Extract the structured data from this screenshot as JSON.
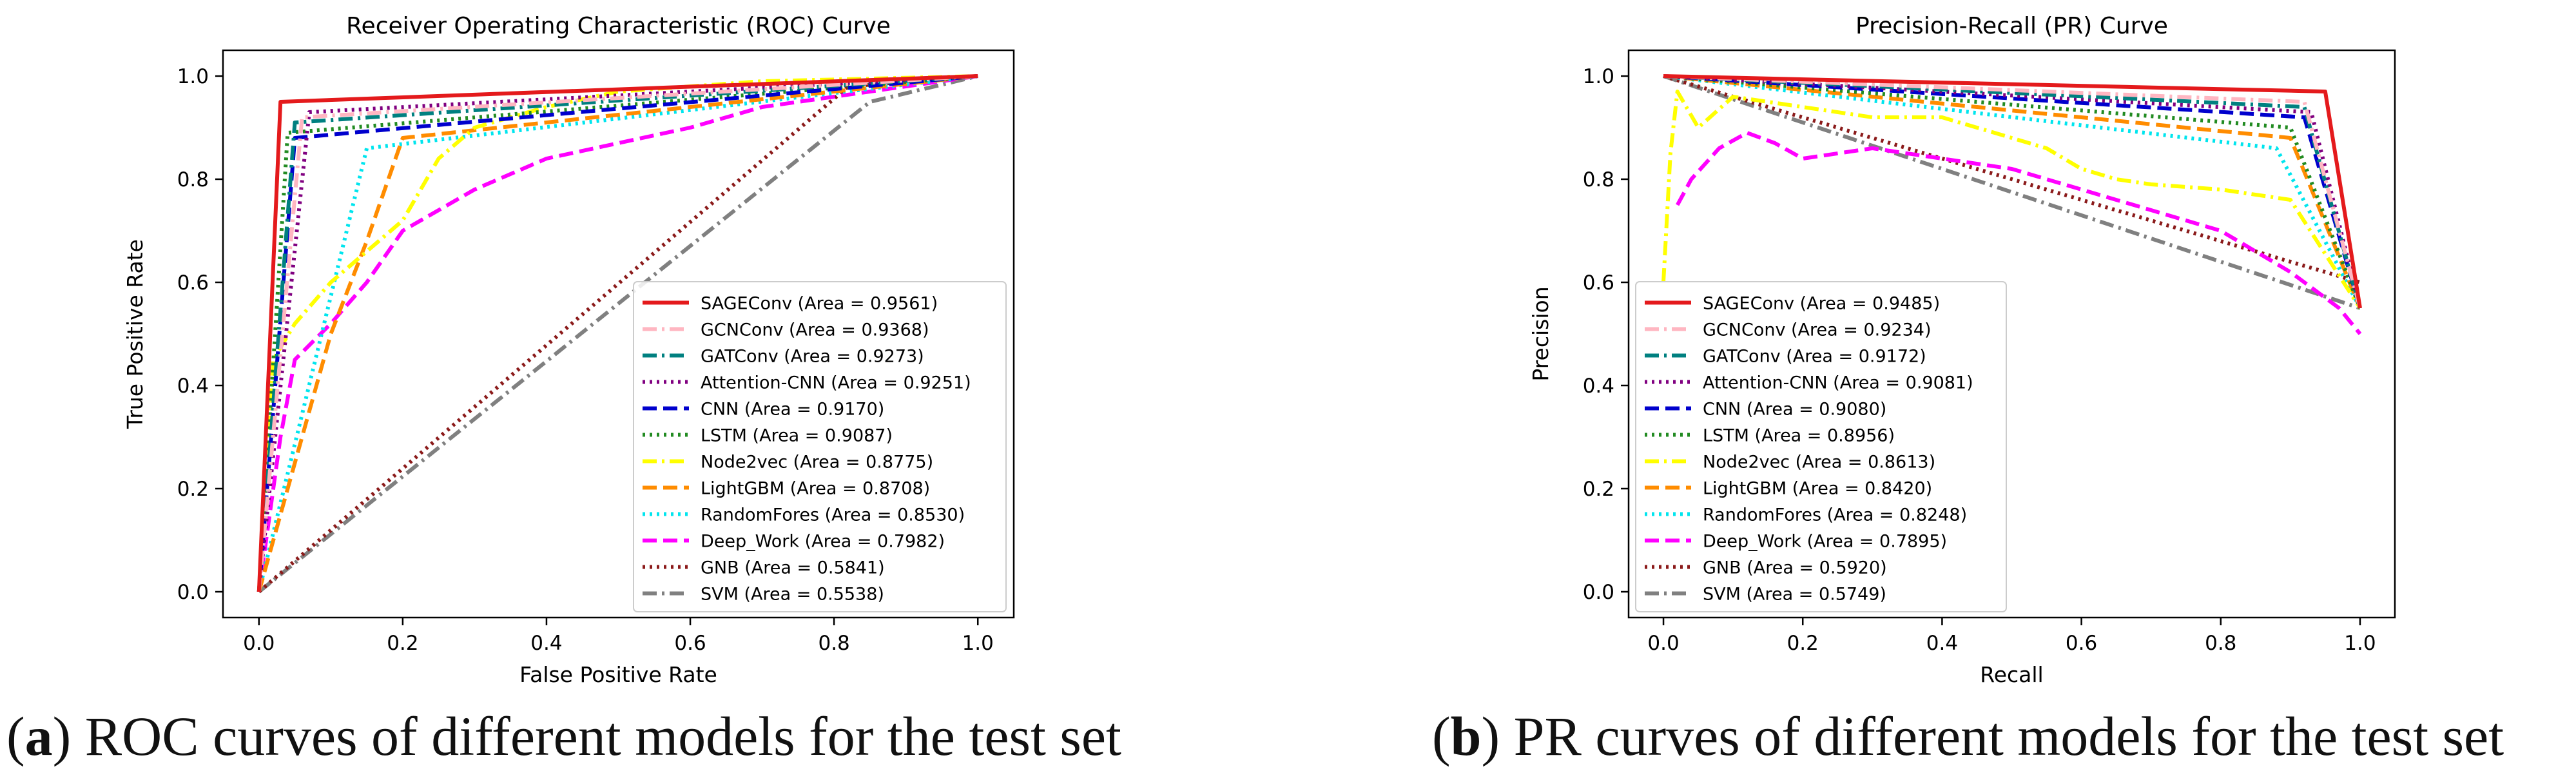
{
  "chart_data": [
    {
      "type": "line",
      "title": "Receiver Operating Characteristic (ROC) Curve",
      "xlabel": "False Positive Rate",
      "ylabel": "True Positive Rate",
      "xlim": [
        -0.05,
        1.05
      ],
      "ylim": [
        -0.05,
        1.05
      ],
      "xticks": [
        "0.0",
        "0.2",
        "0.4",
        "0.6",
        "0.8",
        "1.0"
      ],
      "yticks": [
        "0.0",
        "0.2",
        "0.4",
        "0.6",
        "0.8",
        "1.0"
      ],
      "legend_position": "lower-right",
      "series": [
        {
          "name": "SAGEConv",
          "area": "0.9561",
          "color": "#e41a1c",
          "dash": "solid",
          "points": [
            [
              0,
              0
            ],
            [
              0.03,
              0.95
            ],
            [
              1,
              1
            ]
          ]
        },
        {
          "name": "GCNConv",
          "area": "0.9368",
          "color": "#ffb6c1",
          "dash": "dashdot",
          "points": [
            [
              0,
              0
            ],
            [
              0.06,
              0.92
            ],
            [
              1,
              1
            ]
          ]
        },
        {
          "name": "GATConv",
          "area": "0.9273",
          "color": "#008080",
          "dash": "dashdot",
          "points": [
            [
              0,
              0
            ],
            [
              0.05,
              0.91
            ],
            [
              1,
              1
            ]
          ]
        },
        {
          "name": "Attention-CNN",
          "area": "0.9251",
          "color": "#800080",
          "dash": "dotted",
          "points": [
            [
              0,
              0
            ],
            [
              0.07,
              0.93
            ],
            [
              1,
              1
            ]
          ]
        },
        {
          "name": "CNN",
          "area": "0.9170",
          "color": "#0000cd",
          "dash": "dashed",
          "points": [
            [
              0,
              0
            ],
            [
              0.05,
              0.88
            ],
            [
              1,
              1
            ]
          ]
        },
        {
          "name": "LSTM",
          "area": "0.9087",
          "color": "#228b22",
          "dash": "dotted",
          "points": [
            [
              0,
              0
            ],
            [
              0.04,
              0.89
            ],
            [
              1,
              1
            ]
          ]
        },
        {
          "name": "Node2vec",
          "area": "0.8775",
          "color": "#ffff00",
          "dash": "dashdot",
          "points": [
            [
              0,
              0
            ],
            [
              0.02,
              0.45
            ],
            [
              0.05,
              0.52
            ],
            [
              0.1,
              0.6
            ],
            [
              0.15,
              0.66
            ],
            [
              0.2,
              0.72
            ],
            [
              0.25,
              0.84
            ],
            [
              0.3,
              0.9
            ],
            [
              0.4,
              0.94
            ],
            [
              0.5,
              0.97
            ],
            [
              0.7,
              0.99
            ],
            [
              1,
              1
            ]
          ]
        },
        {
          "name": "LightGBM",
          "area": "0.8708",
          "color": "#ff8c00",
          "dash": "dashed",
          "points": [
            [
              0,
              0
            ],
            [
              0.1,
              0.5
            ],
            [
              0.15,
              0.68
            ],
            [
              0.2,
              0.88
            ],
            [
              1,
              1
            ]
          ]
        },
        {
          "name": "RandomFores",
          "area": "0.8530",
          "color": "#00e5ee",
          "dash": "dotted",
          "points": [
            [
              0,
              0
            ],
            [
              0.15,
              0.86
            ],
            [
              1,
              1
            ]
          ]
        },
        {
          "name": "Deep_Work",
          "area": "0.7982",
          "color": "#ff00ff",
          "dash": "dashed",
          "points": [
            [
              0,
              0
            ],
            [
              0.03,
              0.3
            ],
            [
              0.05,
              0.45
            ],
            [
              0.1,
              0.52
            ],
            [
              0.15,
              0.6
            ],
            [
              0.2,
              0.7
            ],
            [
              0.25,
              0.74
            ],
            [
              0.3,
              0.78
            ],
            [
              0.4,
              0.84
            ],
            [
              0.5,
              0.87
            ],
            [
              0.6,
              0.9
            ],
            [
              0.7,
              0.94
            ],
            [
              0.8,
              0.96
            ],
            [
              0.9,
              0.98
            ],
            [
              1,
              1
            ]
          ]
        },
        {
          "name": "GNB",
          "area": "0.5841",
          "color": "#8b1a1a",
          "dash": "dotted",
          "points": [
            [
              0,
              0
            ],
            [
              0.82,
              0.98
            ],
            [
              1,
              1
            ]
          ]
        },
        {
          "name": "SVM",
          "area": "0.5538",
          "color": "#808080",
          "dash": "dashdot",
          "points": [
            [
              0,
              0
            ],
            [
              0.85,
              0.95
            ],
            [
              1,
              1
            ]
          ]
        }
      ]
    },
    {
      "type": "line",
      "title": "Precision-Recall (PR) Curve",
      "xlabel": "Recall",
      "ylabel": "Precision",
      "xlim": [
        -0.05,
        1.05
      ],
      "ylim": [
        -0.05,
        1.05
      ],
      "xticks": [
        "0.0",
        "0.2",
        "0.4",
        "0.6",
        "0.8",
        "1.0"
      ],
      "yticks": [
        "0.0",
        "0.2",
        "0.4",
        "0.6",
        "0.8",
        "1.0"
      ],
      "legend_position": "lower-left",
      "series": [
        {
          "name": "SAGEConv",
          "area": "0.9485",
          "color": "#e41a1c",
          "dash": "solid",
          "points": [
            [
              0,
              1
            ],
            [
              0.95,
              0.97
            ],
            [
              1,
              0.55
            ]
          ]
        },
        {
          "name": "GCNConv",
          "area": "0.9234",
          "color": "#ffb6c1",
          "dash": "dashdot",
          "points": [
            [
              0,
              1
            ],
            [
              0.92,
              0.95
            ],
            [
              1,
              0.55
            ]
          ]
        },
        {
          "name": "GATConv",
          "area": "0.9172",
          "color": "#008080",
          "dash": "dashdot",
          "points": [
            [
              0,
              1
            ],
            [
              0.92,
              0.94
            ],
            [
              1,
              0.55
            ]
          ]
        },
        {
          "name": "Attention-CNN",
          "area": "0.9081",
          "color": "#800080",
          "dash": "dotted",
          "points": [
            [
              0,
              1
            ],
            [
              0.93,
              0.93
            ],
            [
              1,
              0.55
            ]
          ]
        },
        {
          "name": "CNN",
          "area": "0.9080",
          "color": "#0000cd",
          "dash": "dashed",
          "points": [
            [
              0,
              1
            ],
            [
              0.92,
              0.92
            ],
            [
              1,
              0.55
            ]
          ]
        },
        {
          "name": "LSTM",
          "area": "0.8956",
          "color": "#228b22",
          "dash": "dotted",
          "points": [
            [
              0,
              1
            ],
            [
              0.9,
              0.9
            ],
            [
              1,
              0.55
            ]
          ]
        },
        {
          "name": "Node2vec",
          "area": "0.8613",
          "color": "#ffff00",
          "dash": "dashdot",
          "points": [
            [
              0,
              0.6
            ],
            [
              0.01,
              0.85
            ],
            [
              0.02,
              0.97
            ],
            [
              0.05,
              0.9
            ],
            [
              0.1,
              0.96
            ],
            [
              0.2,
              0.94
            ],
            [
              0.3,
              0.92
            ],
            [
              0.4,
              0.92
            ],
            [
              0.45,
              0.9
            ],
            [
              0.5,
              0.88
            ],
            [
              0.55,
              0.86
            ],
            [
              0.6,
              0.82
            ],
            [
              0.65,
              0.8
            ],
            [
              0.7,
              0.79
            ],
            [
              0.8,
              0.78
            ],
            [
              0.9,
              0.76
            ],
            [
              1,
              0.55
            ]
          ]
        },
        {
          "name": "LightGBM",
          "area": "0.8420",
          "color": "#ff8c00",
          "dash": "dashed",
          "points": [
            [
              0,
              1
            ],
            [
              0.9,
              0.88
            ],
            [
              1,
              0.55
            ]
          ]
        },
        {
          "name": "RandomFores",
          "area": "0.8248",
          "color": "#00e5ee",
          "dash": "dotted",
          "points": [
            [
              0,
              1
            ],
            [
              0.88,
              0.86
            ],
            [
              1,
              0.55
            ]
          ]
        },
        {
          "name": "Deep_Work",
          "area": "0.7895",
          "color": "#ff00ff",
          "dash": "dashed",
          "points": [
            [
              0.02,
              0.75
            ],
            [
              0.04,
              0.8
            ],
            [
              0.08,
              0.86
            ],
            [
              0.12,
              0.89
            ],
            [
              0.16,
              0.87
            ],
            [
              0.2,
              0.84
            ],
            [
              0.3,
              0.86
            ],
            [
              0.4,
              0.84
            ],
            [
              0.5,
              0.82
            ],
            [
              0.6,
              0.78
            ],
            [
              0.7,
              0.74
            ],
            [
              0.8,
              0.7
            ],
            [
              0.9,
              0.62
            ],
            [
              0.97,
              0.55
            ],
            [
              1,
              0.5
            ]
          ]
        },
        {
          "name": "GNB",
          "area": "0.5920",
          "color": "#8b1a1a",
          "dash": "dotted",
          "points": [
            [
              0,
              1
            ],
            [
              1,
              0.6
            ]
          ]
        },
        {
          "name": "SVM",
          "area": "0.5749",
          "color": "#808080",
          "dash": "dashdot",
          "points": [
            [
              0,
              1
            ],
            [
              1,
              0.55
            ]
          ]
        }
      ]
    }
  ],
  "captions": [
    {
      "label": "a",
      "open": "(",
      "close": ")",
      "text": " ROC curves of different models for the test set"
    },
    {
      "label": "b",
      "open": "(",
      "close": ")",
      "text": " PR curves of different models for the test set"
    }
  ]
}
